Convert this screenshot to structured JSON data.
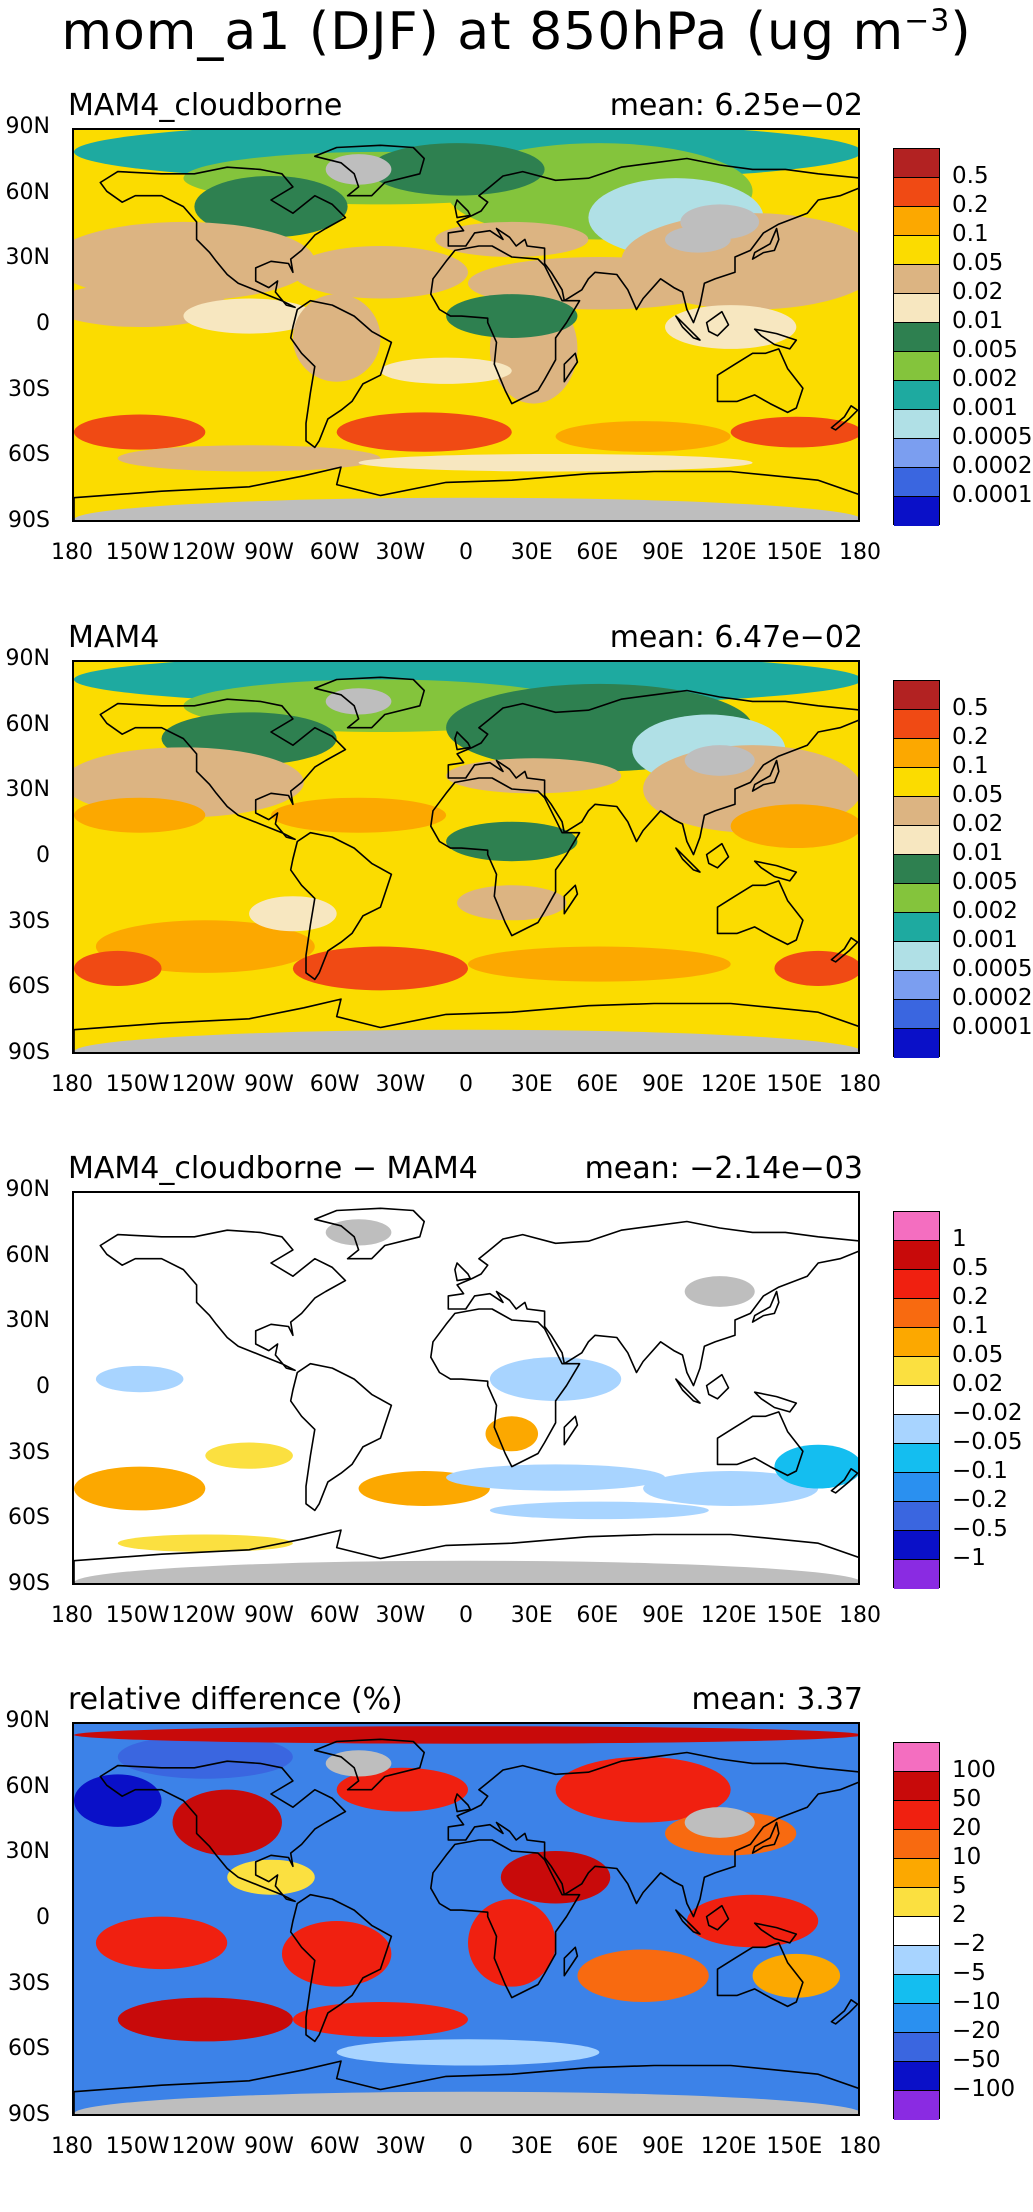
{
  "figure": {
    "title_main": "mom_a1 (DJF) at 850hPa (ug m",
    "title_exp": "−3",
    "title_close": ")"
  },
  "axes": {
    "lat_labels": [
      "90N",
      "60N",
      "30N",
      "0",
      "30S",
      "60S",
      "90S"
    ],
    "lon_labels": [
      "180",
      "150W",
      "120W",
      "90W",
      "60W",
      "30W",
      "0",
      "30E",
      "60E",
      "90E",
      "120E",
      "150E",
      "180"
    ]
  },
  "panels": [
    {
      "label": "MAM4_cloudborne",
      "mean": "mean: 6.25e−02",
      "background": "#fbdc00",
      "levels": [
        "0.5",
        "0.2",
        "0.1",
        "0.05",
        "0.02",
        "0.01",
        "0.005",
        "0.002",
        "0.001",
        "0.0005",
        "0.0002",
        "0.0001"
      ],
      "colors": [
        "#b22222",
        "#f04a14",
        "#fca800",
        "#fbdc00",
        "#dcb482",
        "#f7e7c0",
        "#2e8050",
        "#84c43c",
        "#1eaaa0",
        "#b0e0e6",
        "#7b9ef0",
        "#3a66e0",
        "#0a10c8"
      ]
    },
    {
      "label": "MAM4",
      "mean": "mean: 6.47e−02",
      "background": "#fbdc00",
      "levels": [
        "0.5",
        "0.2",
        "0.1",
        "0.05",
        "0.02",
        "0.01",
        "0.005",
        "0.002",
        "0.001",
        "0.0005",
        "0.0002",
        "0.0001"
      ],
      "colors": [
        "#b22222",
        "#f04a14",
        "#fca800",
        "#fbdc00",
        "#dcb482",
        "#f7e7c0",
        "#2e8050",
        "#84c43c",
        "#1eaaa0",
        "#b0e0e6",
        "#7b9ef0",
        "#3a66e0",
        "#0a10c8"
      ]
    },
    {
      "label": "MAM4_cloudborne − MAM4",
      "mean": "mean: −2.14e−03",
      "background": "#ffffff",
      "levels": [
        "1",
        "0.5",
        "0.2",
        "0.1",
        "0.05",
        "0.02",
        "−0.02",
        "−0.05",
        "−0.1",
        "−0.2",
        "−0.5",
        "−1"
      ],
      "colors": [
        "#f46ec0",
        "#c80a0a",
        "#f02010",
        "#f86a10",
        "#fca800",
        "#fbe040",
        "#ffffff",
        "#a8d4ff",
        "#14bef0",
        "#2a90f0",
        "#3a66e0",
        "#0a10c8",
        "#8a2be2"
      ]
    },
    {
      "label": "relative difference (%)",
      "mean": "mean:   3.37",
      "background": "#3c82e8",
      "levels": [
        "100",
        "50",
        "20",
        "10",
        "5",
        "2",
        "−2",
        "−5",
        "−10",
        "−20",
        "−50",
        "−100"
      ],
      "colors": [
        "#f46ec0",
        "#c80a0a",
        "#f02010",
        "#f86a10",
        "#fca800",
        "#fbe040",
        "#ffffff",
        "#a8d4ff",
        "#14bef0",
        "#2a90f0",
        "#3a66e0",
        "#0a10c8",
        "#8a2be2"
      ]
    }
  ]
}
